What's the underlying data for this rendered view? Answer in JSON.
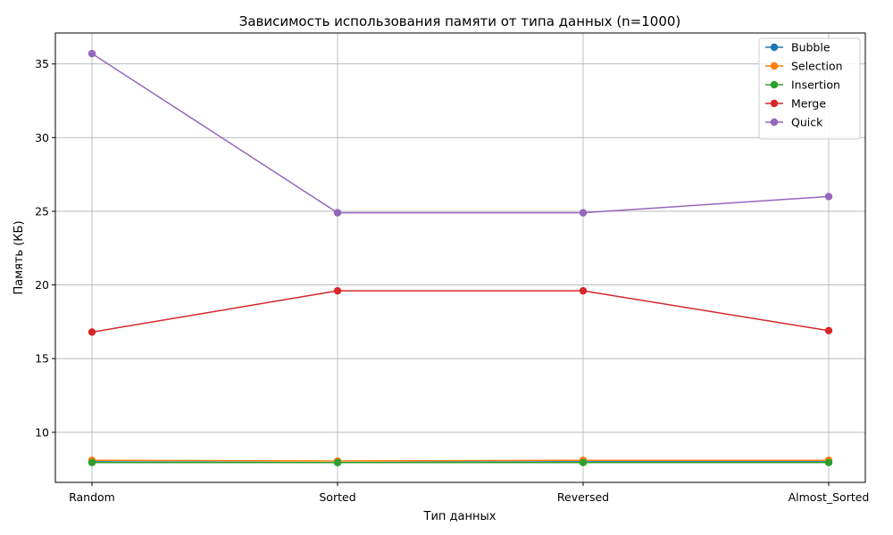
{
  "chart_data": {
    "type": "line",
    "title": "Зависимость использования памяти от типа данных (n=1000)",
    "xlabel": "Тип данных",
    "ylabel": "Память (КБ)",
    "categories": [
      "Random",
      "Sorted",
      "Reversed",
      "Almost_Sorted"
    ],
    "ylim": [
      6.6,
      37.1
    ],
    "yticks": [
      10,
      15,
      20,
      25,
      30,
      35
    ],
    "grid": true,
    "legend_position": "top-right",
    "series": [
      {
        "name": "Bubble",
        "color": "#1f77b4",
        "values": [
          8.0,
          7.95,
          8.0,
          8.0
        ]
      },
      {
        "name": "Selection",
        "color": "#ff7f0e",
        "values": [
          8.1,
          8.05,
          8.1,
          8.1
        ]
      },
      {
        "name": "Insertion",
        "color": "#2ca02c",
        "values": [
          7.95,
          7.95,
          7.95,
          7.95
        ]
      },
      {
        "name": "Merge",
        "color": "#d62728",
        "values": [
          16.8,
          19.6,
          19.6,
          16.9
        ]
      },
      {
        "name": "Quick",
        "color": "#9467bd",
        "values": [
          35.7,
          24.9,
          24.9,
          26.0
        ]
      }
    ]
  }
}
